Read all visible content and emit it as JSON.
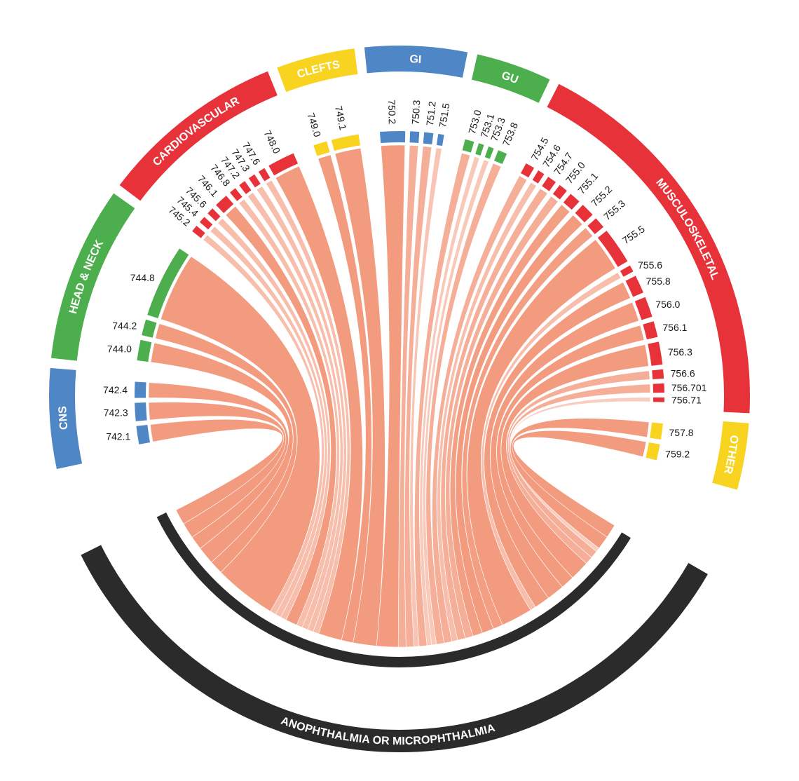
{
  "chart_data": {
    "type": "chord",
    "target": {
      "name": "ANOPHTHALMIA OR MICROPHTHALMIA",
      "color": "#2b2b2b"
    },
    "chord_color": "#f39b7f",
    "groups": [
      {
        "name": "CNS",
        "color": "#4f86c6",
        "items": [
          {
            "code": "742.1",
            "weight": 4
          },
          {
            "code": "742.3",
            "weight": 4
          },
          {
            "code": "742.4",
            "weight": 3.5
          }
        ]
      },
      {
        "name": "HEAD & NECK",
        "color": "#4cae4c",
        "items": [
          {
            "code": "744.0",
            "weight": 4.5
          },
          {
            "code": "744.2",
            "weight": 3.5
          },
          {
            "code": "744.8",
            "weight": 16
          }
        ]
      },
      {
        "name": "CARDIOVASCULAR",
        "color": "#e8323a",
        "items": [
          {
            "code": "745.2",
            "weight": 1.5
          },
          {
            "code": "745.4",
            "weight": 1.5
          },
          {
            "code": "745.6",
            "weight": 1.5
          },
          {
            "code": "746.1",
            "weight": 3
          },
          {
            "code": "746.8",
            "weight": 1.5
          },
          {
            "code": "747.2",
            "weight": 1.5
          },
          {
            "code": "747.3",
            "weight": 1.5
          },
          {
            "code": "747.6",
            "weight": 1.5
          },
          {
            "code": "748.0",
            "weight": 6
          }
        ]
      },
      {
        "name": "CLEFTS",
        "color": "#f8d320",
        "items": [
          {
            "code": "749.0",
            "weight": 3
          },
          {
            "code": "749.1",
            "weight": 6
          }
        ]
      },
      {
        "name": "GI",
        "color": "#4f86c6",
        "items": [
          {
            "code": "750.2",
            "weight": 5.5
          },
          {
            "code": "750.3",
            "weight": 2
          },
          {
            "code": "751.2",
            "weight": 2
          },
          {
            "code": "751.5",
            "weight": 1.3
          }
        ]
      },
      {
        "name": "GU",
        "color": "#4cae4c",
        "items": [
          {
            "code": "753.0",
            "weight": 2
          },
          {
            "code": "753.1",
            "weight": 1.2
          },
          {
            "code": "753.3",
            "weight": 1.2
          },
          {
            "code": "753.8",
            "weight": 2
          }
        ]
      },
      {
        "name": "MUSCULOSKELETAL",
        "color": "#e8323a",
        "items": [
          {
            "code": "754.5",
            "weight": 2
          },
          {
            "code": "754.6",
            "weight": 1.5
          },
          {
            "code": "754.7",
            "weight": 2
          },
          {
            "code": "755.0",
            "weight": 2
          },
          {
            "code": "755.1",
            "weight": 2.5
          },
          {
            "code": "755.2",
            "weight": 3
          },
          {
            "code": "755.3",
            "weight": 2.5
          },
          {
            "code": "755.5",
            "weight": 8
          },
          {
            "code": "755.6",
            "weight": 1.5
          },
          {
            "code": "755.8",
            "weight": 4
          },
          {
            "code": "756.0",
            "weight": 4.5
          },
          {
            "code": "756.1",
            "weight": 3.5
          },
          {
            "code": "756.3",
            "weight": 5
          },
          {
            "code": "756.6",
            "weight": 2
          },
          {
            "code": "756.701",
            "weight": 2
          },
          {
            "code": "756.71",
            "weight": 1
          }
        ]
      },
      {
        "name": "OTHER",
        "color": "#f8d320",
        "items": [
          {
            "code": "757.8",
            "weight": 3.5
          },
          {
            "code": "759.2",
            "weight": 3.5
          }
        ]
      }
    ]
  }
}
